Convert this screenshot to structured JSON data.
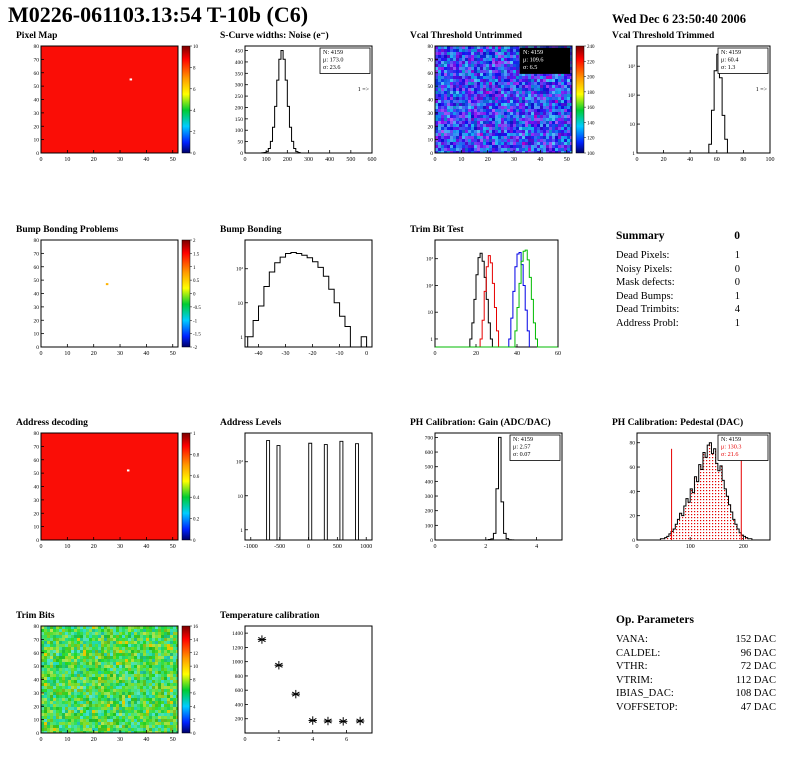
{
  "header": {
    "title": "M0226-061103.13:54 T-10b (C6)",
    "datetime": "Wed Dec  6 23:50:40 2006"
  },
  "summary": {
    "title": "Summary",
    "total": "0",
    "rows": [
      {
        "label": "Dead Pixels:",
        "value": "1"
      },
      {
        "label": "Noisy Pixels:",
        "value": "0"
      },
      {
        "label": "Mask defects:",
        "value": "0"
      },
      {
        "label": "Dead Bumps:",
        "value": "1"
      },
      {
        "label": "Dead Trimbits:",
        "value": "4"
      },
      {
        "label": "Address Probl:",
        "value": "1"
      }
    ]
  },
  "op_parameters": {
    "title": "Op. Parameters",
    "rows": [
      {
        "label": "VANA:",
        "value": "152 DAC"
      },
      {
        "label": "CALDEL:",
        "value": "96 DAC"
      },
      {
        "label": "VTHR:",
        "value": "72 DAC"
      },
      {
        "label": "VTRIM:",
        "value": "112 DAC"
      },
      {
        "label": "IBIAS_DAC:",
        "value": "108 DAC"
      },
      {
        "label": "VOFFSETOP:",
        "value": "47 DAC"
      }
    ]
  },
  "chart_data": [
    {
      "title": "Pixel Map",
      "type": "heatmap",
      "xlim": [
        0,
        52
      ],
      "ylim": [
        0,
        80
      ],
      "xticks": [
        0,
        10,
        20,
        30,
        40,
        50
      ],
      "yticks": [
        0,
        10,
        20,
        30,
        40,
        50,
        60,
        70,
        80
      ],
      "base_color": "#fa0d06",
      "defects": [
        {
          "x": 34,
          "y": 55,
          "color": "#ffffff"
        }
      ],
      "colorbar": {
        "labels": [
          "10",
          "8",
          "6",
          "4",
          "2",
          "0"
        ]
      }
    },
    {
      "title": "S-Curve widths: Noise (e⁻)",
      "type": "histogram",
      "xlim": [
        0,
        600
      ],
      "ylim": [
        0,
        470
      ],
      "xticks": [
        0,
        100,
        200,
        300,
        400,
        500,
        600
      ],
      "yticks": [
        0,
        50,
        100,
        150,
        200,
        250,
        300,
        350,
        400,
        450
      ],
      "color": "#000000",
      "bins": {
        "start": 80,
        "width": 10,
        "counts": [
          1,
          2,
          6,
          20,
          51,
          113,
          205,
          320,
          412,
          450,
          412,
          320,
          205,
          113,
          51,
          20,
          6,
          2
        ]
      },
      "stats": {
        "lines": [
          {
            "text": "N: 4159"
          },
          {
            "text": "μ: 173.0"
          },
          {
            "text": "σ: 23.6"
          }
        ]
      },
      "annotation": {
        "text": "1 =>",
        "ry": 0.42
      }
    },
    {
      "title": "Vcal Threshold Untrimmed",
      "type": "heatmap",
      "xlim": [
        0,
        52
      ],
      "ylim": [
        0,
        80
      ],
      "xticks": [
        0,
        10,
        20,
        30,
        40,
        50
      ],
      "yticks": [
        0,
        10,
        20,
        30,
        40,
        50,
        60,
        70,
        80
      ],
      "texture": {
        "hue": 235,
        "hue_var": 40,
        "sat": 88,
        "light": 53,
        "light_var": 12,
        "speckle_prob": 0.012,
        "speckle_color": "#b400c8"
      },
      "colorbar": {
        "labels": [
          "240",
          "220",
          "200",
          "180",
          "160",
          "140",
          "120",
          "100"
        ]
      },
      "stats": {
        "dark": true,
        "lines": [
          {
            "text": "N: 4159"
          },
          {
            "text": "μ: 109.6"
          },
          {
            "text": "σ: 6.5"
          }
        ]
      }
    },
    {
      "title": "Vcal Threshold Trimmed",
      "type": "histogram",
      "logy": true,
      "xlim": [
        0,
        100
      ],
      "ylim": [
        1,
        5000
      ],
      "xticks": [
        0,
        20,
        40,
        60,
        80,
        100
      ],
      "color": "#000000",
      "bins": {
        "start": 54,
        "width": 2,
        "counts": [
          2,
          30,
          700,
          2600,
          400,
          20,
          3
        ]
      },
      "stats": {
        "lines": [
          {
            "text": "N: 4159"
          },
          {
            "text": "μ: 60.4"
          },
          {
            "text": "σ: 1.3"
          }
        ]
      },
      "annotation": {
        "text": "1 =>",
        "ry": 0.42
      }
    },
    {
      "title": "Bump Bonding Problems",
      "type": "heatmap",
      "xlim": [
        0,
        52
      ],
      "ylim": [
        0,
        80
      ],
      "xticks": [
        0,
        10,
        20,
        30,
        40,
        50
      ],
      "yticks": [
        0,
        10,
        20,
        30,
        40,
        50,
        60,
        70,
        80
      ],
      "base_color": "#ffffff",
      "defects": [
        {
          "x": 25,
          "y": 47,
          "color": "#ffb300"
        }
      ],
      "colorbar": {
        "labels": [
          "2",
          "1.5",
          "1",
          "0.5",
          "0",
          "-0.5",
          "-1",
          "-1.5",
          "-2"
        ]
      }
    },
    {
      "title": "Bump Bonding",
      "type": "histogram",
      "logy": true,
      "xlim": [
        -45,
        2
      ],
      "ylim": [
        0.5,
        700
      ],
      "xticks": [
        -40,
        -30,
        -20,
        -10,
        0
      ],
      "color": "#000000",
      "bins": {
        "start": -44,
        "width": 2,
        "counts": [
          1,
          3,
          8,
          30,
          80,
          150,
          220,
          280,
          300,
          280,
          250,
          210,
          160,
          110,
          60,
          25,
          10,
          4,
          2,
          0,
          0,
          1
        ]
      }
    },
    {
      "title": "Trim Bit Test",
      "type": "multihist",
      "logy": true,
      "xlim": [
        0,
        60
      ],
      "ylim": [
        0.5,
        5000
      ],
      "xticks": [
        0,
        20,
        40,
        60
      ],
      "series": [
        {
          "name": "trim bit 14",
          "color": "#000000",
          "bins": {
            "start": 17,
            "width": 1,
            "counts": [
              1,
              4,
              30,
              250,
              1100,
              1600,
              800,
              200,
              30,
              4,
              1
            ]
          }
        },
        {
          "name": "trim bit 13",
          "color": "#e60000",
          "bins": {
            "start": 22,
            "width": 1,
            "counts": [
              1,
              5,
              60,
              500,
              1300,
              700,
              120,
              15,
              2
            ]
          }
        },
        {
          "name": "trim bit 11",
          "color": "#0000e6",
          "bins": {
            "start": 36,
            "width": 1,
            "counts": [
              1,
              6,
              60,
              500,
              1500,
              1700,
              600,
              100,
              12,
              2
            ]
          }
        },
        {
          "name": "trim bit 7",
          "color": "#00bb00",
          "bins": {
            "start": 0,
            "width": 1,
            "counts": [
              0,
              0,
              0,
              0,
              0,
              0,
              0,
              0,
              0,
              0,
              0,
              0,
              0,
              0,
              0,
              0,
              0,
              0,
              0,
              0,
              0,
              0,
              0,
              0,
              0,
              0,
              0,
              0,
              0,
              0,
              0,
              0,
              0,
              0,
              0,
              0,
              0,
              0,
              0,
              2,
              15,
              120,
              800,
              1900,
              2100,
              900,
              200,
              30,
              4,
              1,
              0,
              0,
              0,
              0,
              0,
              0,
              0,
              0,
              0,
              0
            ]
          }
        }
      ]
    },
    {
      "title": "Address decoding",
      "type": "heatmap",
      "xlim": [
        0,
        52
      ],
      "ylim": [
        0,
        80
      ],
      "xticks": [
        0,
        10,
        20,
        30,
        40,
        50
      ],
      "yticks": [
        0,
        10,
        20,
        30,
        40,
        50,
        60,
        70,
        80
      ],
      "base_color": "#fa0d06",
      "defects": [
        {
          "x": 33,
          "y": 52,
          "color": "#ffffff"
        }
      ],
      "colorbar": {
        "labels": [
          "1",
          "0.8",
          "0.6",
          "0.4",
          "0.2",
          "0"
        ]
      }
    },
    {
      "title": "Address Levels",
      "type": "spikes",
      "logy": true,
      "xlim": [
        -1100,
        1100
      ],
      "ylim": [
        0.5,
        700
      ],
      "xticks": [
        -1000,
        -500,
        0,
        500,
        1000
      ],
      "spikes": [
        [
          -700,
          420
        ],
        [
          -520,
          300
        ],
        [
          30,
          350
        ],
        [
          300,
          320
        ],
        [
          570,
          400
        ],
        [
          840,
          340
        ]
      ]
    },
    {
      "title": "PH Calibration: Gain (ADC/DAC)",
      "type": "histogram",
      "xlim": [
        0,
        5
      ],
      "ylim": [
        0,
        730
      ],
      "xticks": [
        0,
        2,
        4
      ],
      "yticks": [
        0,
        100,
        200,
        300,
        400,
        500,
        600,
        700
      ],
      "color": "#000000",
      "bins": {
        "start": 2.0,
        "width": 0.1,
        "counts": [
          1,
          3,
          8,
          45,
          350,
          700,
          260,
          45,
          9,
          2,
          1
        ]
      },
      "stats": {
        "lines": [
          {
            "text": "N: 4159"
          },
          {
            "text": "μ: 2.57"
          },
          {
            "text": "σ: 0.07"
          }
        ]
      }
    },
    {
      "title": "PH Calibration: Pedestal (DAC)",
      "type": "histogram",
      "xlim": [
        0,
        250
      ],
      "ylim": [
        0,
        88
      ],
      "xticks": [
        0,
        100,
        200
      ],
      "yticks": [
        0,
        20,
        40,
        60,
        80
      ],
      "color": "#000000",
      "fill": "dots",
      "bins": {
        "start": 44,
        "width": 4,
        "counts": [
          1,
          1,
          2,
          3,
          5,
          7,
          9,
          13,
          17,
          22,
          20,
          28,
          34,
          31,
          42,
          39,
          52,
          48,
          62,
          58,
          72,
          68,
          78,
          80,
          71,
          75,
          63,
          57,
          61,
          49,
          42,
          36,
          29,
          23,
          17,
          13,
          9,
          6,
          4,
          3,
          2,
          1,
          1
        ]
      },
      "vlines": [
        {
          "x": 65,
          "y": 75,
          "color": "#e60000"
        },
        {
          "x": 196,
          "y": 75,
          "color": "#e60000"
        }
      ],
      "stats": {
        "lines": [
          {
            "text": "N: 4159",
            "color": "#000000"
          },
          {
            "text": "μ: 130.3",
            "color": "#e60000"
          },
          {
            "text": "σ: 21.6",
            "color": "#e60000"
          }
        ]
      }
    },
    {
      "title": "Trim Bits",
      "type": "heatmap",
      "xlim": [
        0,
        52
      ],
      "ylim": [
        0,
        80
      ],
      "xticks": [
        0,
        10,
        20,
        30,
        40,
        50
      ],
      "yticks": [
        0,
        10,
        20,
        30,
        40,
        50,
        60,
        70,
        80
      ],
      "texture": {
        "hue": 125,
        "hue_var": 50,
        "sat": 72,
        "light": 52,
        "light_var": 10,
        "speckle_prob": 0.01,
        "speckle_color": "#e6c800"
      },
      "colorbar": {
        "labels": [
          "16",
          "14",
          "12",
          "10",
          "8",
          "6",
          "4",
          "2",
          "0"
        ]
      }
    },
    {
      "title": "Temperature calibration",
      "type": "scatter",
      "xlim": [
        0,
        7.5
      ],
      "ylim": [
        0,
        1500
      ],
      "xticks": [
        0,
        2,
        4,
        6
      ],
      "yticks": [
        200,
        400,
        600,
        800,
        1000,
        1200,
        1400
      ],
      "points": [
        [
          1,
          1310
        ],
        [
          2,
          950
        ],
        [
          3,
          545
        ],
        [
          4,
          175
        ],
        [
          4.9,
          168
        ],
        [
          5.8,
          163
        ],
        [
          6.8,
          168
        ]
      ]
    }
  ]
}
